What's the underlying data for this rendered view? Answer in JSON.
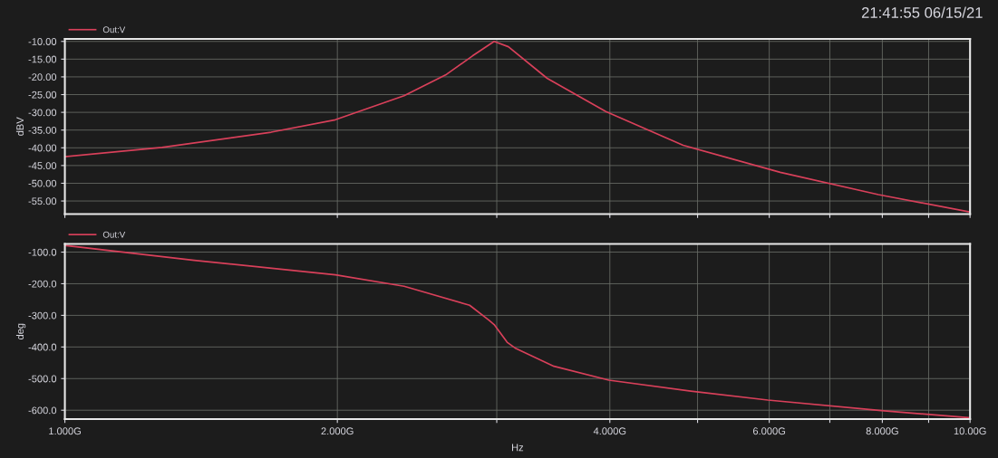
{
  "chart_data": [
    {
      "type": "line",
      "ylabel": "dBV",
      "annotations": [
        "21:41:55 06/15/21"
      ],
      "log": "x",
      "grid": true,
      "legend": "top left",
      "tick_labels": "y",
      "marker": "none",
      "line_style": "solid",
      "xlim": [
        1,
        10
      ],
      "xticks": [
        {
          "value": 1,
          "label": null
        },
        {
          "value": 2,
          "label": null
        },
        {
          "value": 3,
          "label": null
        },
        {
          "value": 4,
          "label": null
        },
        {
          "value": 5,
          "label": null
        },
        {
          "value": 6,
          "label": null
        },
        {
          "value": 7,
          "label": null
        },
        {
          "value": 8,
          "label": null
        },
        {
          "value": 9,
          "label": null
        },
        {
          "value": 10,
          "label": null
        }
      ],
      "ylim": [
        -58.7,
        -9.3
      ],
      "yticks": [
        {
          "value": -10,
          "label": "-10.00"
        },
        {
          "value": -15,
          "label": "-15.00"
        },
        {
          "value": -20,
          "label": "-20.00"
        },
        {
          "value": -25,
          "label": "-25.00"
        },
        {
          "value": -30,
          "label": "-30.00"
        },
        {
          "value": -35,
          "label": "-35.00"
        },
        {
          "value": -40,
          "label": "-40.00"
        },
        {
          "value": -45,
          "label": "-45.00"
        },
        {
          "value": -50,
          "label": "-50.00"
        },
        {
          "value": -55,
          "label": "-55.00"
        }
      ],
      "series": [
        {
          "name": "Out:V",
          "color": "#d8405a",
          "x": [
            1.0,
            1.28,
            1.69,
            1.99,
            2.37,
            2.64,
            2.82,
            2.98,
            3.09,
            3.41,
            3.96,
            4.82,
            6.17,
            7.92,
            10.0
          ],
          "values": [
            -42.5,
            -39.9,
            -35.6,
            -32.1,
            -25.3,
            -19.3,
            -14.1,
            -10.0,
            -11.5,
            -20.4,
            -29.8,
            -39.3,
            -46.9,
            -53.2,
            -58.1
          ]
        }
      ]
    },
    {
      "type": "line",
      "xlabel": "Hz",
      "ylabel": "deg",
      "log": "x",
      "grid": true,
      "legend": "top left",
      "marker": "none",
      "line_style": "solid",
      "xlim": [
        1,
        10
      ],
      "xticks": [
        {
          "value": 1,
          "label": "1.000G"
        },
        {
          "value": 2,
          "label": "2.000G"
        },
        {
          "value": 3,
          "label": null
        },
        {
          "value": 4,
          "label": "4.000G"
        },
        {
          "value": 5,
          "label": null
        },
        {
          "value": 6,
          "label": "6.000G"
        },
        {
          "value": 7,
          "label": null
        },
        {
          "value": 8,
          "label": "8.000G"
        },
        {
          "value": 9,
          "label": null
        },
        {
          "value": 10,
          "label": "10.00G"
        }
      ],
      "ylim": [
        -628,
        -74
      ],
      "yticks": [
        {
          "value": -100,
          "label": "-100.0"
        },
        {
          "value": -200,
          "label": "-200.0"
        },
        {
          "value": -300,
          "label": "-300.0"
        },
        {
          "value": -400,
          "label": "-400.0"
        },
        {
          "value": -500,
          "label": "-500.0"
        },
        {
          "value": -600,
          "label": "-600.0"
        }
      ],
      "series": [
        {
          "name": "Out:V",
          "color": "#d8405a",
          "x": [
            1.0,
            1.39,
            1.99,
            2.37,
            2.8,
            2.94,
            2.98,
            3.08,
            3.15,
            3.47,
            3.99,
            4.99,
            5.98,
            7.98,
            10.0
          ],
          "values": [
            -79,
            -126,
            -172,
            -208,
            -268,
            -315,
            -329,
            -385,
            -405,
            -461,
            -505,
            -542,
            -568,
            -601,
            -624
          ]
        }
      ]
    }
  ]
}
